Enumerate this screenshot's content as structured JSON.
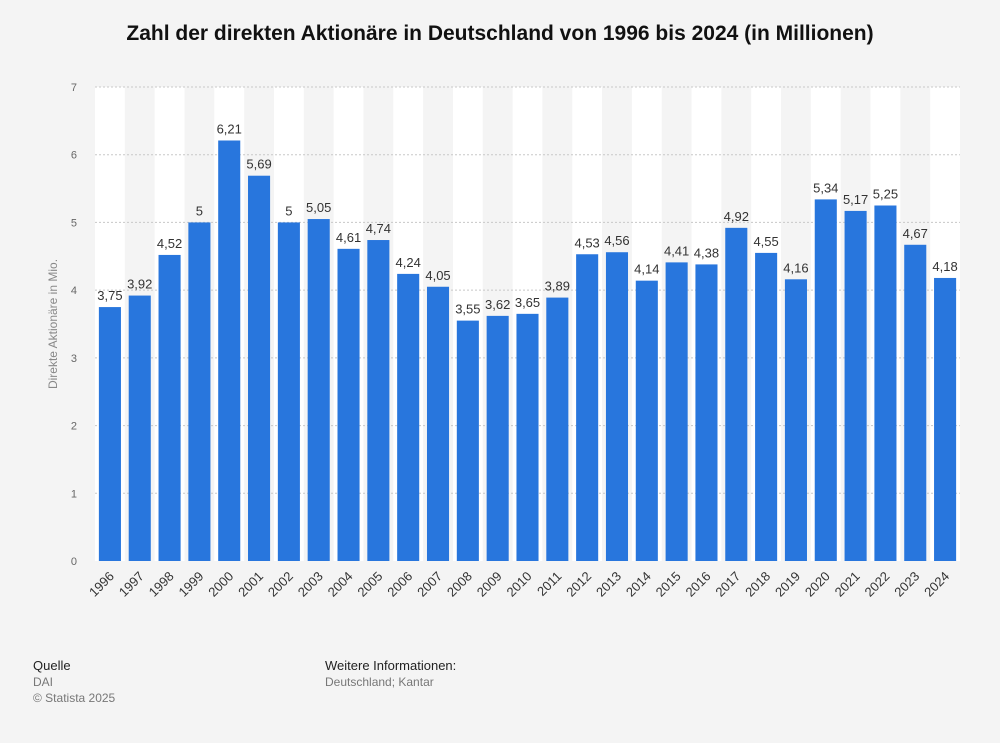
{
  "chart_data": {
    "type": "bar",
    "title": "Zahl der direkten Aktionäre in Deutschland von 1996 bis 2024 (in Millionen)",
    "ylabel": "Direkte Aktionäre in Mio.",
    "xlabel": "",
    "ylim": [
      0,
      7
    ],
    "yticks": [
      "0",
      "1",
      "2",
      "3",
      "4",
      "5",
      "6",
      "7"
    ],
    "grid": true,
    "bar_color": "#2876dd",
    "categories": [
      "1996",
      "1997",
      "1998",
      "1999",
      "2000",
      "2001",
      "2002",
      "2003",
      "2004",
      "2005",
      "2006",
      "2007",
      "2008",
      "2009",
      "2010",
      "2011",
      "2012",
      "2013",
      "2014",
      "2015",
      "2016",
      "2017",
      "2018",
      "2019",
      "2020",
      "2021",
      "2022",
      "2023",
      "2024"
    ],
    "values": [
      3.75,
      3.92,
      4.52,
      5,
      6.21,
      5.69,
      5,
      5.05,
      4.61,
      4.74,
      4.24,
      4.05,
      3.55,
      3.62,
      3.65,
      3.89,
      4.53,
      4.56,
      4.14,
      4.41,
      4.38,
      4.92,
      4.55,
      4.16,
      5.34,
      5.17,
      5.25,
      4.67,
      4.18
    ],
    "labels": [
      "3,75",
      "3,92",
      "4,52",
      "5",
      "6,21",
      "5,69",
      "5",
      "5,05",
      "4,61",
      "4,74",
      "4,24",
      "4,05",
      "3,55",
      "3,62",
      "3,65",
      "3,89",
      "4,53",
      "4,56",
      "4,14",
      "4,41",
      "4,38",
      "4,92",
      "4,55",
      "4,16",
      "5,34",
      "5,17",
      "5,25",
      "4,67",
      "4,18"
    ]
  },
  "footer": {
    "source_heading": "Quelle",
    "source": "DAI",
    "copyright": "© Statista 2025",
    "info_heading": "Weitere Informationen:",
    "info": "Deutschland; Kantar"
  }
}
